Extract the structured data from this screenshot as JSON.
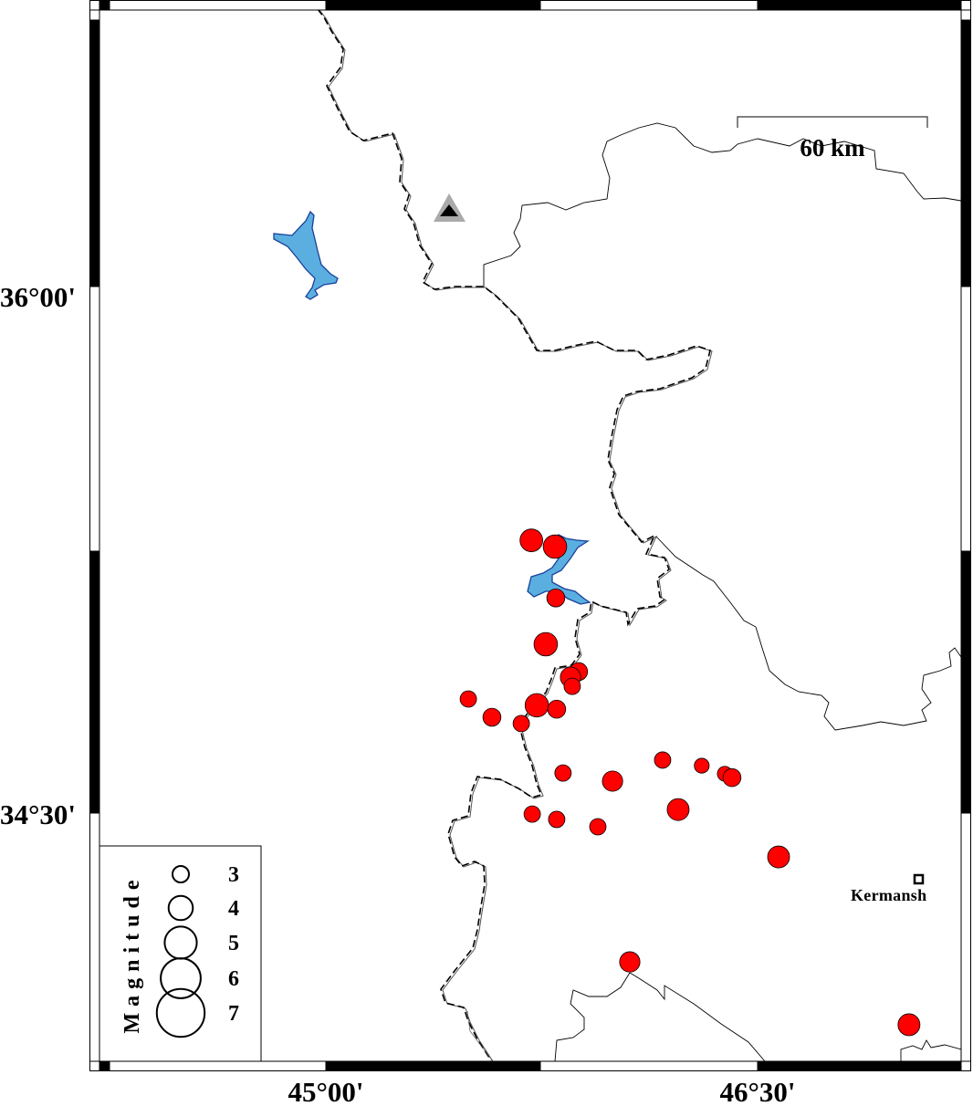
{
  "map": {
    "projection_extent": {
      "lon_label_ticks": [
        "45°00'",
        "46°30'"
      ],
      "lat_label_ticks": [
        "36°00'",
        "34°30'"
      ]
    },
    "axis_labels": {
      "lat_36_00": "36°00'",
      "lat_34_30": "34°30'",
      "lon_45_00": "45°00'",
      "lon_46_30": "46°30'"
    },
    "scale_bar": {
      "label": "60 km"
    },
    "city": {
      "name": "Kermansh",
      "marker": "open-square"
    },
    "station": {
      "marker": "triangle",
      "outer_color": "#aaaaaa",
      "inner_color": "#000000"
    },
    "colors": {
      "event_fill": "#ff0000",
      "lake_fill": "#5aafe0",
      "lake_outline": "#1a3f9a",
      "border": "#000000"
    }
  },
  "legend": {
    "title": "Magnitude",
    "magnitudes": [
      3,
      4,
      5,
      6,
      7
    ],
    "labels": [
      "3",
      "4",
      "5",
      "6",
      "7"
    ]
  },
  "events": [
    {
      "lon": 45.714,
      "lat": 35.277,
      "mag": 3.8
    },
    {
      "lon": 45.796,
      "lat": 35.259,
      "mag": 3.9
    },
    {
      "lon": 45.799,
      "lat": 35.113,
      "mag": 3.2
    },
    {
      "lon": 45.764,
      "lat": 34.981,
      "mag": 3.9
    },
    {
      "lon": 45.878,
      "lat": 34.903,
      "mag": 3.2
    },
    {
      "lon": 45.85,
      "lat": 34.887,
      "mag": 3.5
    },
    {
      "lon": 45.856,
      "lat": 34.861,
      "mag": 3.0
    },
    {
      "lon": 45.495,
      "lat": 34.825,
      "mag": 3.0
    },
    {
      "lon": 45.733,
      "lat": 34.807,
      "mag": 3.9
    },
    {
      "lon": 45.802,
      "lat": 34.796,
      "mag": 3.2
    },
    {
      "lon": 45.577,
      "lat": 34.773,
      "mag": 3.2
    },
    {
      "lon": 45.679,
      "lat": 34.755,
      "mag": 3.0
    },
    {
      "lon": 45.824,
      "lat": 34.614,
      "mag": 3.0
    },
    {
      "lon": 45.996,
      "lat": 34.591,
      "mag": 3.5
    },
    {
      "lon": 46.17,
      "lat": 34.651,
      "mag": 3.0
    },
    {
      "lon": 46.306,
      "lat": 34.635,
      "mag": 2.8
    },
    {
      "lon": 46.386,
      "lat": 34.612,
      "mag": 2.8
    },
    {
      "lon": 46.411,
      "lat": 34.601,
      "mag": 3.2
    },
    {
      "lon": 46.224,
      "lat": 34.51,
      "mag": 3.7
    },
    {
      "lon": 45.717,
      "lat": 34.497,
      "mag": 3.0
    },
    {
      "lon": 45.802,
      "lat": 34.482,
      "mag": 3.0
    },
    {
      "lon": 45.945,
      "lat": 34.461,
      "mag": 3.0
    },
    {
      "lon": 46.573,
      "lat": 34.375,
      "mag": 3.7
    },
    {
      "lon": 46.056,
      "lat": 34.076,
      "mag": 3.5
    },
    {
      "lon": 47.026,
      "lat": 33.897,
      "mag": 3.7
    }
  ]
}
